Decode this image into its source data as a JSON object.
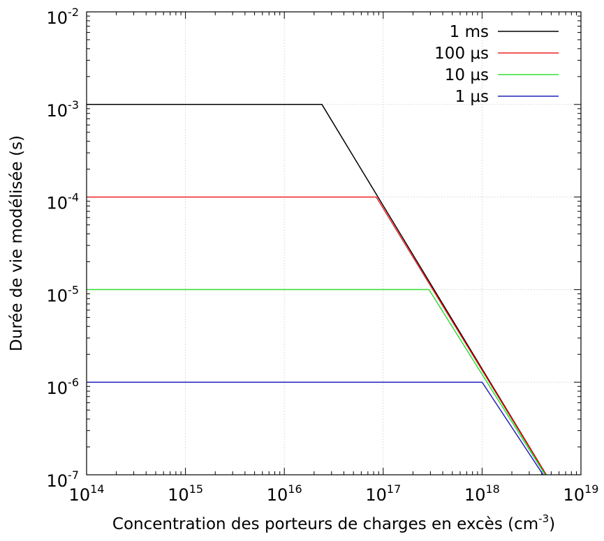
{
  "chart_data": {
    "type": "line",
    "title": "",
    "xlabel": "Concentration des porteurs de charges en excès (cm",
    "xlabel_exp": "-3",
    "xlabel_suffix": ")",
    "ylabel": "Durée de vie modélisée (s)",
    "xscale": "log",
    "yscale": "log",
    "xlim": [
      100000000000000.0,
      1e+19
    ],
    "ylim": [
      1e-07,
      0.01
    ],
    "grid": true,
    "legend_position": "top-right",
    "x_ticks": [
      {
        "base": "10",
        "exp": "14",
        "value": 100000000000000.0
      },
      {
        "base": "10",
        "exp": "15",
        "value": 1000000000000000.0
      },
      {
        "base": "10",
        "exp": "16",
        "value": 1e+16
      },
      {
        "base": "10",
        "exp": "17",
        "value": 1e+17
      },
      {
        "base": "10",
        "exp": "18",
        "value": 1e+18
      },
      {
        "base": "10",
        "exp": "19",
        "value": 1e+19
      }
    ],
    "y_ticks": [
      {
        "base": "10",
        "exp": "-7",
        "value": 1e-07
      },
      {
        "base": "10",
        "exp": "-6",
        "value": 1e-06
      },
      {
        "base": "10",
        "exp": "-5",
        "value": 1e-05
      },
      {
        "base": "10",
        "exp": "-4",
        "value": 0.0001
      },
      {
        "base": "10",
        "exp": "-3",
        "value": 0.001
      },
      {
        "base": "10",
        "exp": "-2",
        "value": 0.01
      }
    ],
    "series": [
      {
        "name": "1 ms",
        "color": "#000000",
        "x": [
          100000000000000.0,
          2.4e+16,
          1e+19
        ],
        "y": [
          0.001,
          0.001,
          2.4e-08
        ]
      },
      {
        "name": "100 µs",
        "color": "#ee2222",
        "x": [
          100000000000000.0,
          8.5e+16,
          1e+19
        ],
        "y": [
          0.0001,
          0.0001,
          2.4e-08
        ]
      },
      {
        "name": "10 µs",
        "color": "#33dd33",
        "x": [
          100000000000000.0,
          2.9e+17,
          1e+19
        ],
        "y": [
          1e-05,
          1e-05,
          2.4e-08
        ]
      },
      {
        "name": "1 µs",
        "color": "#2222bb",
        "x": [
          100000000000000.0,
          1e+18,
          1e+19
        ],
        "y": [
          1e-06,
          1e-06,
          2.4e-08
        ]
      }
    ]
  }
}
